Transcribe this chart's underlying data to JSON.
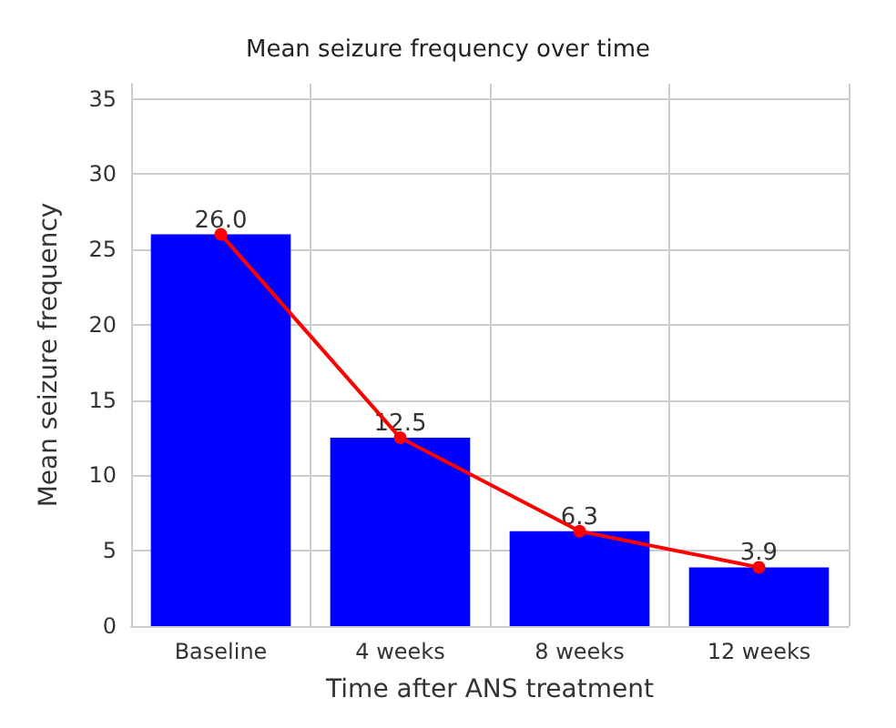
{
  "chart_data": {
    "type": "bar",
    "title": "Mean seizure frequency over time",
    "xlabel": "Time after ANS treatment",
    "ylabel": "Mean seizure frequency",
    "categories": [
      "Baseline",
      "4 weeks",
      "8 weeks",
      "12 weeks"
    ],
    "series": [
      {
        "color": "#0000ff",
        "values": [
          26.0,
          12.5,
          6.3,
          3.9
        ],
        "value_labels": [
          "26.0",
          "12.5",
          "6.3",
          "3.9"
        ]
      },
      {
        "type": "line",
        "color": "#ff0000",
        "values": [
          26.0,
          12.5,
          6.3,
          3.9
        ],
        "marker": "circle",
        "line_style": "solid"
      }
    ],
    "ylim": [
      0,
      36
    ],
    "yticks": [
      0,
      5,
      10,
      15,
      20,
      25,
      30,
      35
    ],
    "grid": true
  }
}
